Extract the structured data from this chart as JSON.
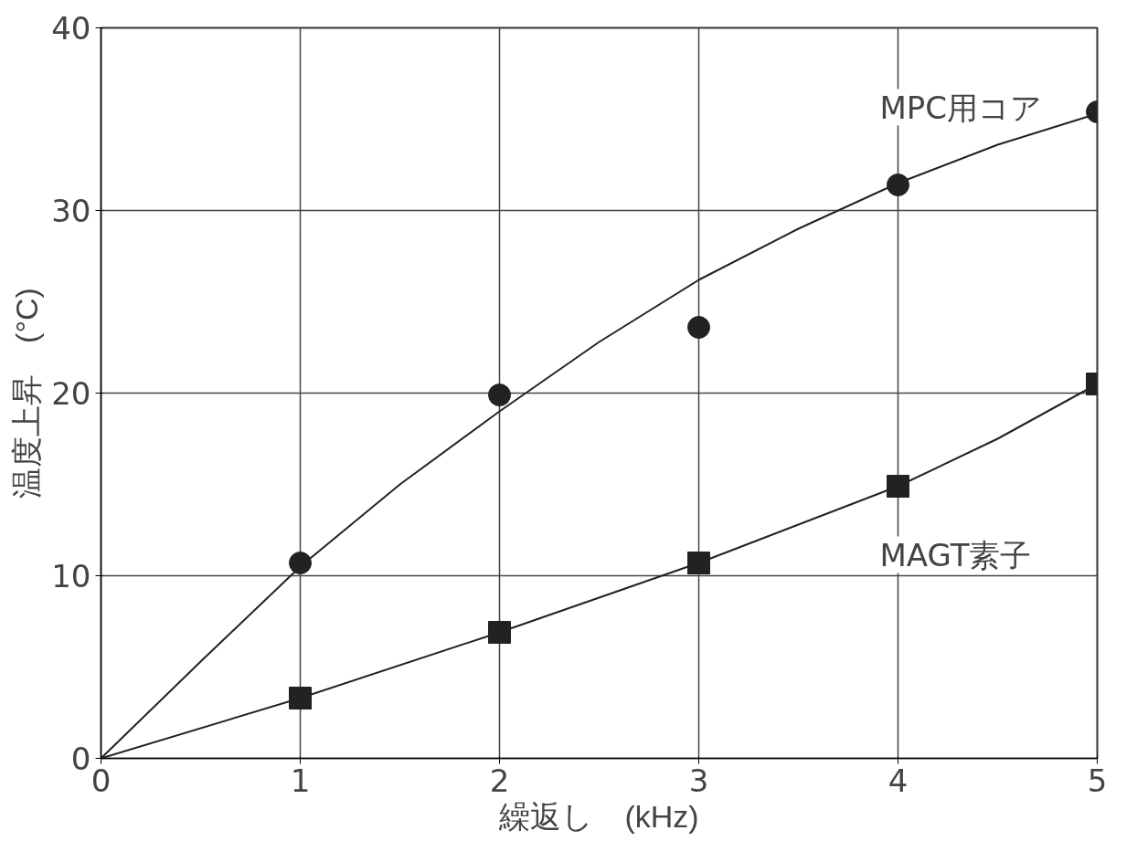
{
  "chart_data": {
    "type": "scatter",
    "xlabel": "繰返し　(kHz)",
    "ylabel": "温度上昇　(°C)",
    "xlim": [
      0,
      5
    ],
    "ylim": [
      0,
      40
    ],
    "xticks": [
      0,
      1,
      2,
      3,
      4,
      5
    ],
    "yticks": [
      0,
      10,
      20,
      30,
      40
    ],
    "grid": true,
    "series": [
      {
        "name": "MPC用コア",
        "marker": "circle",
        "color": "#222222",
        "x": [
          1,
          2,
          3,
          4,
          5
        ],
        "values": [
          10.7,
          19.9,
          23.6,
          31.4,
          35.4
        ]
      },
      {
        "name": "MAGT素子",
        "marker": "square",
        "color": "#222222",
        "x": [
          1,
          2,
          3,
          4,
          5
        ],
        "values": [
          3.3,
          6.9,
          10.7,
          14.9,
          20.5
        ]
      },
      {
        "type": "line",
        "marker": "none",
        "color": "#222222",
        "x": [
          0,
          0.5,
          1,
          1.5,
          2,
          2.5,
          3,
          3.5,
          4,
          4.5,
          5
        ],
        "values": [
          0,
          5.3,
          10.5,
          15,
          19,
          22.8,
          26.2,
          29,
          31.5,
          33.6,
          35.3
        ]
      },
      {
        "type": "line",
        "marker": "none",
        "color": "#222222",
        "x": [
          0,
          1,
          2,
          3,
          4,
          4.5,
          5
        ],
        "values": [
          0,
          3.3,
          6.9,
          10.7,
          14.9,
          17.5,
          20.5
        ]
      }
    ]
  }
}
